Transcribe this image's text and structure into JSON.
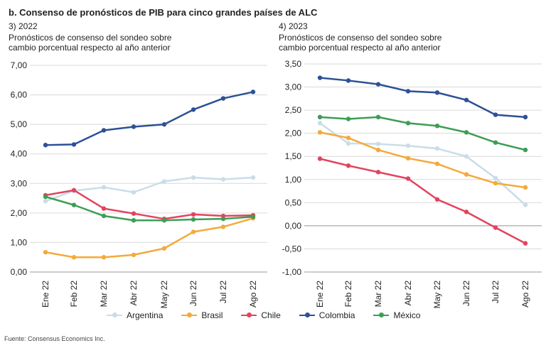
{
  "header": {
    "title": "b. Consenso de pronósticos de PIB para cinco grandes países de ALC"
  },
  "source": "Fuente: Consensus Economics Inc.",
  "chart_data": [
    {
      "type": "line",
      "title": "3) 2022",
      "subtitle_line1": "Pronósticos de consenso del sondeo sobre",
      "subtitle_line2": "cambio porcentual respecto al año anterior",
      "categories": [
        "Ene 22",
        "Feb 22",
        "Mar 22",
        "Abr 22",
        "May 22",
        "Jun 22",
        "Jul 22",
        "Ago 22"
      ],
      "ylim": [
        0,
        7
      ],
      "yticks": [
        "0,00",
        "1,00",
        "2,00",
        "3,00",
        "4,00",
        "5,00",
        "6,00",
        "7,00"
      ],
      "series": [
        {
          "name": "Argentina",
          "color": "#c9dde8",
          "values": [
            2.4,
            2.75,
            2.87,
            2.7,
            3.07,
            3.2,
            3.14,
            3.2
          ]
        },
        {
          "name": "Brasil",
          "color": "#f5a93a",
          "values": [
            0.67,
            0.5,
            0.5,
            0.58,
            0.8,
            1.36,
            1.53,
            1.82
          ]
        },
        {
          "name": "Chile",
          "color": "#e2445e",
          "values": [
            2.6,
            2.77,
            2.15,
            1.98,
            1.8,
            1.95,
            1.9,
            1.92
          ]
        },
        {
          "name": "Colombia",
          "color": "#2c5196",
          "values": [
            4.3,
            4.32,
            4.8,
            4.92,
            5.0,
            5.5,
            5.88,
            6.1
          ]
        },
        {
          "name": "México",
          "color": "#3c9e55",
          "values": [
            2.55,
            2.27,
            1.9,
            1.75,
            1.75,
            1.78,
            1.8,
            1.87
          ]
        }
      ]
    },
    {
      "type": "line",
      "title": "4) 2023",
      "subtitle_line1": "Pronósticos de consenso del sondeo sobre",
      "subtitle_line2": "cambio porcentual respecto al año anterior",
      "categories": [
        "Ene 22",
        "Feb 22",
        "Mar 22",
        "Abr 22",
        "May 22",
        "Jun 22",
        "Jul 22",
        "Ago 22"
      ],
      "ylim": [
        -1,
        3.5
      ],
      "yticks": [
        "-1,00",
        "-0,50",
        "0,00",
        "0,50",
        "1,00",
        "1,50",
        "2,00",
        "2,50",
        "3,00",
        "3,50"
      ],
      "series": [
        {
          "name": "Argentina",
          "color": "#c9dde8",
          "values": [
            2.22,
            1.78,
            1.77,
            1.73,
            1.67,
            1.5,
            1.03,
            0.45
          ]
        },
        {
          "name": "Brasil",
          "color": "#f5a93a",
          "values": [
            2.02,
            1.9,
            1.64,
            1.46,
            1.34,
            1.11,
            0.92,
            0.83
          ]
        },
        {
          "name": "Chile",
          "color": "#e2445e",
          "values": [
            1.45,
            1.3,
            1.16,
            1.02,
            0.57,
            0.3,
            -0.04,
            -0.38
          ]
        },
        {
          "name": "Colombia",
          "color": "#2c5196",
          "values": [
            3.2,
            3.14,
            3.06,
            2.91,
            2.88,
            2.72,
            2.4,
            2.35
          ]
        },
        {
          "name": "México",
          "color": "#3c9e55",
          "values": [
            2.35,
            2.31,
            2.35,
            2.22,
            2.16,
            2.02,
            1.8,
            1.64
          ]
        }
      ]
    }
  ],
  "legend": [
    {
      "label": "Argentina",
      "color": "#c9dde8"
    },
    {
      "label": "Brasil",
      "color": "#f5a93a"
    },
    {
      "label": "Chile",
      "color": "#e2445e"
    },
    {
      "label": "Colombia",
      "color": "#2c5196"
    },
    {
      "label": "México",
      "color": "#3c9e55"
    }
  ]
}
